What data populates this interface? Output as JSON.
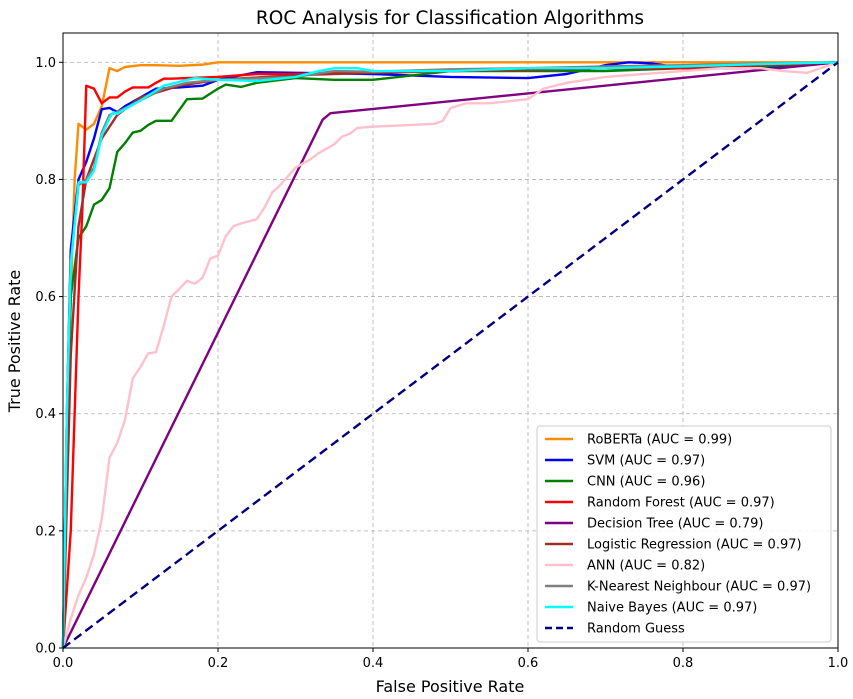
{
  "chart_data": {
    "type": "line",
    "title": "ROC Analysis for Classification Algorithms",
    "xlabel": "False Positive Rate",
    "ylabel": "True Positive Rate",
    "xlim": [
      0,
      1
    ],
    "ylim": [
      0,
      1.05
    ],
    "xticks": [
      0,
      0.2,
      0.4,
      0.6,
      0.8,
      1.0
    ],
    "xtick_labels": [
      "0.0",
      "0.2",
      "0.4",
      "0.6",
      "0.8",
      "1.0"
    ],
    "yticks": [
      0,
      0.2,
      0.4,
      0.6,
      0.8,
      1.0
    ],
    "ytick_labels": [
      "0.0",
      "0.2",
      "0.4",
      "0.6",
      "0.8",
      "1.0"
    ],
    "grid": true,
    "legend_position": "bottom-right",
    "series": [
      {
        "name": "RoBERTa (AUC = 0.99)",
        "color": "#ff8c00",
        "dashed": false,
        "x": [
          0,
          0.005,
          0.01,
          0.015,
          0.02,
          0.03,
          0.04,
          0.05,
          0.06,
          0.07,
          0.08,
          0.1,
          0.12,
          0.15,
          0.18,
          0.2,
          0.25,
          0.3,
          1.0
        ],
        "y": [
          0,
          0.3,
          0.6,
          0.8,
          0.895,
          0.885,
          0.895,
          0.925,
          0.99,
          0.985,
          0.992,
          0.995,
          0.995,
          0.994,
          0.996,
          1.0,
          1.0,
          1.0,
          1.0
        ]
      },
      {
        "name": "SVM (AUC = 0.97)",
        "color": "#0000ff",
        "dashed": false,
        "x": [
          0,
          0.005,
          0.01,
          0.02,
          0.03,
          0.04,
          0.05,
          0.06,
          0.07,
          0.08,
          0.1,
          0.12,
          0.15,
          0.18,
          0.2,
          0.25,
          0.3,
          0.4,
          0.5,
          0.6,
          0.65,
          0.7,
          0.73,
          0.76,
          0.8,
          0.9,
          1.0
        ],
        "y": [
          0,
          0.4,
          0.68,
          0.8,
          0.83,
          0.87,
          0.92,
          0.922,
          0.915,
          0.925,
          0.94,
          0.955,
          0.957,
          0.96,
          0.97,
          0.983,
          0.982,
          0.98,
          0.975,
          0.973,
          0.98,
          0.995,
          1.0,
          0.998,
          0.99,
          0.99,
          1.0
        ]
      },
      {
        "name": "CNN (AUC = 0.96)",
        "color": "#008000",
        "dashed": false,
        "x": [
          0,
          0.005,
          0.01,
          0.02,
          0.03,
          0.04,
          0.05,
          0.06,
          0.07,
          0.08,
          0.09,
          0.1,
          0.11,
          0.12,
          0.14,
          0.16,
          0.18,
          0.2,
          0.21,
          0.23,
          0.25,
          0.3,
          0.35,
          0.4,
          0.5,
          0.6,
          0.7,
          0.8,
          0.9,
          1.0
        ],
        "y": [
          0,
          0.38,
          0.6,
          0.7,
          0.72,
          0.757,
          0.765,
          0.785,
          0.847,
          0.862,
          0.88,
          0.883,
          0.893,
          0.9,
          0.9,
          0.937,
          0.938,
          0.955,
          0.962,
          0.958,
          0.965,
          0.973,
          0.97,
          0.97,
          0.985,
          0.985,
          0.985,
          0.99,
          0.993,
          1.0
        ]
      },
      {
        "name": "Random Forest (AUC = 0.97)",
        "color": "#ff0000",
        "dashed": false,
        "x": [
          0,
          0.01,
          0.02,
          0.025,
          0.03,
          0.04,
          0.05,
          0.06,
          0.07,
          0.08,
          0.09,
          0.1,
          0.11,
          0.12,
          0.13,
          0.14,
          0.16,
          0.2,
          0.25,
          0.3,
          0.4,
          0.5,
          0.6,
          0.7,
          0.8,
          0.9,
          1.0
        ],
        "y": [
          0,
          0.2,
          0.6,
          0.75,
          0.96,
          0.955,
          0.93,
          0.94,
          0.94,
          0.95,
          0.957,
          0.957,
          0.957,
          0.965,
          0.972,
          0.972,
          0.973,
          0.975,
          0.98,
          0.98,
          0.983,
          0.985,
          0.988,
          0.99,
          0.99,
          0.995,
          1.0
        ]
      },
      {
        "name": "Decision Tree (AUC = 0.79)",
        "color": "#800080",
        "dashed": false,
        "x": [
          0,
          0.335,
          0.345,
          1.0
        ],
        "y": [
          0,
          0.902,
          0.913,
          1.0
        ]
      },
      {
        "name": "Logistic Regression (AUC = 0.97)",
        "color": "#a52a2a",
        "dashed": false,
        "x": [
          0,
          0.01,
          0.02,
          0.03,
          0.05,
          0.07,
          0.1,
          0.15,
          0.2,
          0.3,
          0.4,
          0.5,
          0.6,
          0.7,
          0.8,
          0.9,
          1.0
        ],
        "y": [
          0,
          0.5,
          0.72,
          0.8,
          0.87,
          0.91,
          0.94,
          0.96,
          0.97,
          0.978,
          0.982,
          0.985,
          0.987,
          0.99,
          0.992,
          0.996,
          1.0
        ]
      },
      {
        "name": "ANN (AUC = 0.82)",
        "color": "#ffc0cb",
        "dashed": false,
        "x": [
          0,
          0.01,
          0.02,
          0.03,
          0.04,
          0.05,
          0.06,
          0.07,
          0.08,
          0.09,
          0.1,
          0.11,
          0.12,
          0.13,
          0.14,
          0.15,
          0.16,
          0.17,
          0.18,
          0.19,
          0.2,
          0.21,
          0.22,
          0.23,
          0.25,
          0.26,
          0.27,
          0.28,
          0.3,
          0.32,
          0.33,
          0.35,
          0.36,
          0.37,
          0.38,
          0.4,
          0.45,
          0.48,
          0.49,
          0.5,
          0.52,
          0.55,
          0.6,
          0.62,
          0.65,
          0.7,
          0.75,
          0.8,
          0.85,
          0.9,
          0.93,
          0.96,
          1.0
        ],
        "y": [
          0,
          0.05,
          0.09,
          0.12,
          0.16,
          0.22,
          0.325,
          0.35,
          0.39,
          0.46,
          0.48,
          0.503,
          0.505,
          0.55,
          0.6,
          0.613,
          0.627,
          0.622,
          0.632,
          0.665,
          0.67,
          0.703,
          0.72,
          0.725,
          0.732,
          0.752,
          0.778,
          0.79,
          0.82,
          0.835,
          0.845,
          0.86,
          0.873,
          0.878,
          0.888,
          0.89,
          0.893,
          0.895,
          0.9,
          0.922,
          0.93,
          0.93,
          0.937,
          0.955,
          0.965,
          0.975,
          0.98,
          0.985,
          0.99,
          0.99,
          0.985,
          0.982,
          1.0
        ]
      },
      {
        "name": "K-Nearest Neighbour (AUC = 0.97)",
        "color": "#808080",
        "dashed": false,
        "x": [
          0,
          0.005,
          0.01,
          0.02,
          0.03,
          0.04,
          0.05,
          0.06,
          0.07,
          0.1,
          0.13,
          0.16,
          0.2,
          0.3,
          0.35,
          0.4,
          0.5,
          0.6,
          0.7,
          0.8,
          0.9,
          1.0
        ],
        "y": [
          0,
          0.4,
          0.66,
          0.79,
          0.8,
          0.82,
          0.88,
          0.91,
          0.915,
          0.935,
          0.955,
          0.965,
          0.97,
          0.975,
          0.985,
          0.984,
          0.988,
          0.99,
          0.993,
          0.995,
          0.998,
          1.0
        ]
      },
      {
        "name": "Naive Bayes (AUC = 0.97)",
        "color": "#00ffff",
        "dashed": false,
        "x": [
          0,
          0.005,
          0.01,
          0.02,
          0.03,
          0.04,
          0.05,
          0.06,
          0.065,
          0.07,
          0.08,
          0.1,
          0.13,
          0.17,
          0.2,
          0.25,
          0.3,
          0.33,
          0.35,
          0.38,
          0.4,
          0.5,
          0.6,
          0.7,
          0.8,
          0.9,
          1.0
        ],
        "y": [
          0,
          0.4,
          0.65,
          0.795,
          0.795,
          0.815,
          0.875,
          0.905,
          0.915,
          0.912,
          0.92,
          0.935,
          0.96,
          0.973,
          0.97,
          0.968,
          0.975,
          0.985,
          0.99,
          0.99,
          0.985,
          0.985,
          0.99,
          0.99,
          0.993,
          0.997,
          1.0
        ]
      },
      {
        "name": "Random Guess",
        "color": "#000080",
        "dashed": true,
        "x": [
          0,
          1
        ],
        "y": [
          0,
          1
        ]
      }
    ]
  }
}
